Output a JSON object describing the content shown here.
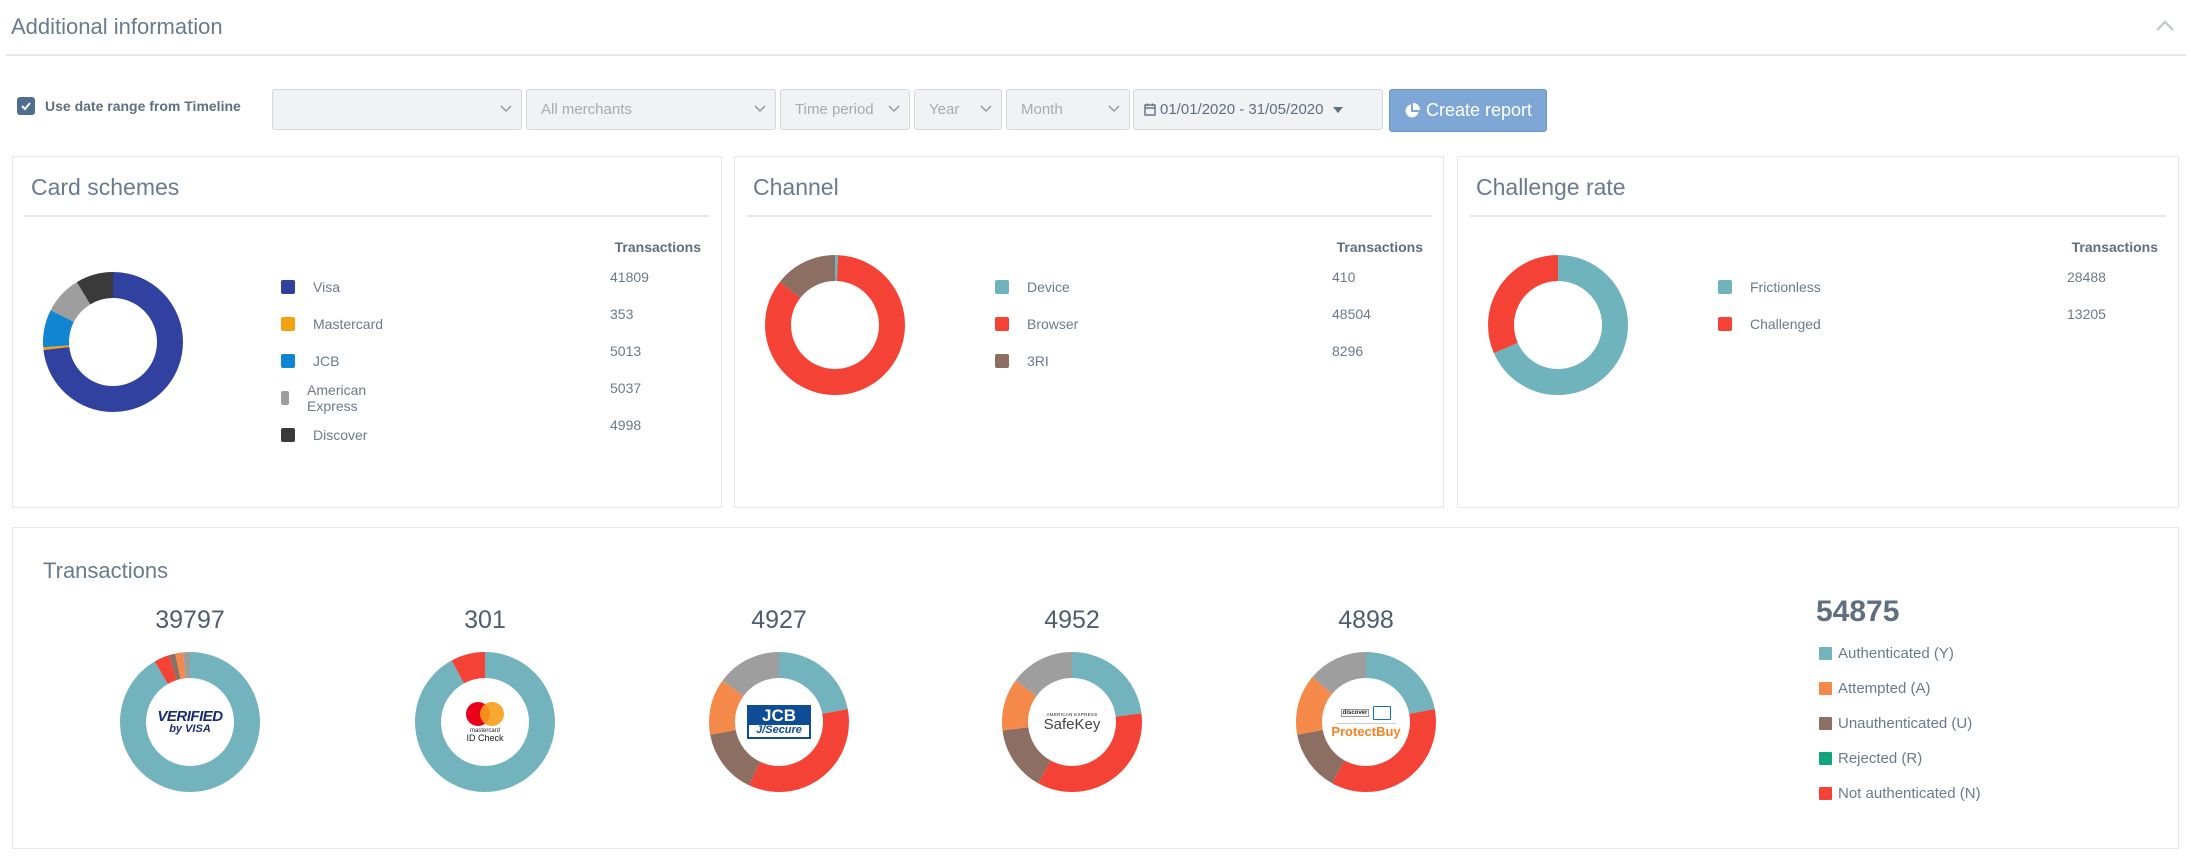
{
  "header": {
    "title": "Additional information"
  },
  "filters": {
    "use_date_range_label": "Use date range from Timeline",
    "use_date_range_checked": true,
    "select1_value": "",
    "merchants_value": "All merchants",
    "time_period_value": "Time period",
    "year_value": "Year",
    "month_value": "Month",
    "date_range_value": "01/01/2020 - 31/05/2020",
    "create_report_label": "Create report"
  },
  "colors": {
    "visa": "#3041a0",
    "mastercard": "#f5a011",
    "jcb": "#1185d1",
    "amex": "#9e9e9e",
    "discover": "#3a3a3a",
    "device": "#6fb3bd",
    "browser": "#f44336",
    "threeri": "#8d6e63",
    "frictionless": "#6fb3bd",
    "challenged": "#f44336",
    "authenticated": "#72b3bd",
    "attempted": "#f5894a",
    "unauthenticated": "#8d6e63",
    "rejected": "#12a57d",
    "not_authenticated": "#f44336"
  },
  "card_schemes": {
    "title": "Card schemes",
    "column_header": "Transactions",
    "items": [
      {
        "label": "Visa",
        "value": "41809",
        "color": "#3041a0"
      },
      {
        "label": "Mastercard",
        "value": "353",
        "color": "#f5a011"
      },
      {
        "label": "JCB",
        "value": "5013",
        "color": "#1185d1"
      },
      {
        "label": "American Express",
        "value": "5037",
        "color": "#9e9e9e"
      },
      {
        "label": "Discover",
        "value": "4998",
        "color": "#3a3a3a"
      }
    ]
  },
  "channel": {
    "title": "Channel",
    "column_header": "Transactions",
    "items": [
      {
        "label": "Device",
        "value": "410",
        "color": "#6fb3bd"
      },
      {
        "label": "Browser",
        "value": "48504",
        "color": "#f44336"
      },
      {
        "label": "3RI",
        "value": "8296",
        "color": "#8d6e63"
      }
    ]
  },
  "challenge_rate": {
    "title": "Challenge rate",
    "column_header": "Transactions",
    "items": [
      {
        "label": "Frictionless",
        "value": "28488",
        "color": "#6fb3bd"
      },
      {
        "label": "Challenged",
        "value": "13205",
        "color": "#f44336"
      }
    ]
  },
  "transactions": {
    "title": "Transactions",
    "total": "54875",
    "legend": [
      {
        "label": "Authenticated (Y)",
        "color": "#72b3bd"
      },
      {
        "label": "Attempted (A)",
        "color": "#f5894a"
      },
      {
        "label": "Unauthenticated (U)",
        "color": "#8d6e63"
      },
      {
        "label": "Rejected (R)",
        "color": "#12a57d"
      },
      {
        "label": "Not authenticated (N)",
        "color": "#f44336"
      }
    ],
    "schemes": [
      {
        "count": "39797",
        "logo": "verified-by-visa",
        "logo_text_1": "VERIFIED",
        "logo_text_2": "by VISA",
        "segments": [
          {
            "v": 91.5,
            "c": "#72b3bd"
          },
          {
            "v": 3.5,
            "c": "#f44336"
          },
          {
            "v": 1.5,
            "c": "#8d6e63"
          },
          {
            "v": 1.8,
            "c": "#f5894a"
          },
          {
            "v": 1.7,
            "c": "#9e9e9e"
          }
        ]
      },
      {
        "count": "301",
        "logo": "mastercard-id-check",
        "logo_text_1": "mastercard",
        "logo_text_2": "ID Check",
        "segments": [
          {
            "v": 92,
            "c": "#72b3bd"
          },
          {
            "v": 8,
            "c": "#f44336"
          }
        ]
      },
      {
        "count": "4927",
        "logo": "jcb-j-secure",
        "logo_text_1": "JCB",
        "logo_text_2": "J/Secure",
        "segments": [
          {
            "v": 22,
            "c": "#72b3bd"
          },
          {
            "v": 35,
            "c": "#f44336"
          },
          {
            "v": 15,
            "c": "#8d6e63"
          },
          {
            "v": 13,
            "c": "#f5894a"
          },
          {
            "v": 15,
            "c": "#9e9e9e"
          }
        ]
      },
      {
        "count": "4952",
        "logo": "amex-safekey",
        "logo_text_1": "AMERICAN EXPRESS",
        "logo_text_2": "SafeKey",
        "segments": [
          {
            "v": 23,
            "c": "#72b3bd"
          },
          {
            "v": 35,
            "c": "#f44336"
          },
          {
            "v": 15,
            "c": "#8d6e63"
          },
          {
            "v": 12,
            "c": "#f5894a"
          },
          {
            "v": 15,
            "c": "#9e9e9e"
          }
        ]
      },
      {
        "count": "4898",
        "logo": "discover-protectbuy",
        "logo_text_1": "DISCOVER",
        "logo_text_2": "ProtectBuy",
        "segments": [
          {
            "v": 22,
            "c": "#72b3bd"
          },
          {
            "v": 36,
            "c": "#f44336"
          },
          {
            "v": 14,
            "c": "#8d6e63"
          },
          {
            "v": 14,
            "c": "#f5894a"
          },
          {
            "v": 14,
            "c": "#9e9e9e"
          }
        ]
      }
    ]
  }
}
